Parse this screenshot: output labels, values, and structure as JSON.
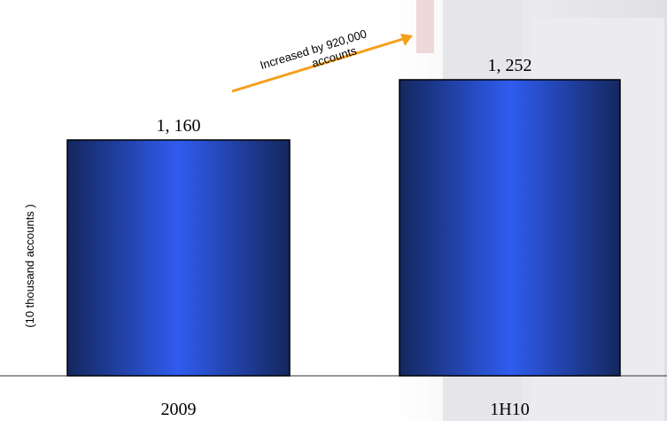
{
  "chart_data": {
    "type": "bar",
    "categories": [
      "2009",
      "1H10"
    ],
    "values": [
      1160,
      1252
    ],
    "value_labels": [
      "1, 160",
      "1, 252"
    ],
    "ylabel": "(10 thousand accounts )",
    "annotation": [
      "Increased by 920,000",
      "accounts"
    ],
    "ylim": [
      800,
      1300
    ],
    "color": "#2f5cf0",
    "arrow_color": "#f5a01a"
  }
}
